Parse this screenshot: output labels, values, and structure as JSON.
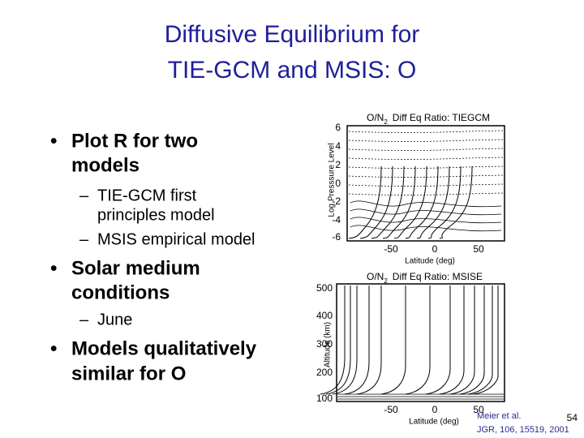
{
  "header": {
    "title": [
      "Diffusive Equilibrium for",
      "TIE-GCM and MSIS: O"
    ]
  },
  "bullets": [
    {
      "lines": [
        "Plot R for two",
        "models"
      ],
      "sub": [
        {
          "lines": [
            "TIE-GCM first",
            "principles model"
          ]
        },
        {
          "lines": [
            "MSIS empirical model"
          ]
        }
      ]
    },
    {
      "lines": [
        "Solar medium",
        "conditions"
      ],
      "sub": [
        {
          "lines": [
            "June"
          ]
        }
      ]
    },
    {
      "lines": [
        "Models qualitatively",
        "similar for O"
      ]
    }
  ],
  "plots": [
    {
      "title": {
        "main": "O/N",
        "sub": "2",
        "rest": "Diff  Eq  Ratio:  TIEGCM"
      },
      "ylabel": "Log Presssure Level",
      "xlabel": "Latitude (deg)",
      "yticks": [
        6,
        4,
        2,
        0,
        -2,
        -4,
        -6
      ],
      "xticks": [
        -50,
        0,
        50
      ]
    },
    {
      "title": {
        "main": "O/N",
        "sub": "2",
        "rest": "Diff  Eq  Ratio:  MSISE"
      },
      "ylabel": "Altitude (km)",
      "xlabel": "Latitude (deg)",
      "yticks": [
        500,
        400,
        300,
        200,
        100
      ],
      "xticks": [
        -50,
        0,
        50
      ]
    }
  ],
  "footer": {
    "citation": [
      "Meier et al.",
      "JGR, 106, 15519, 2001"
    ],
    "page": "54"
  }
}
